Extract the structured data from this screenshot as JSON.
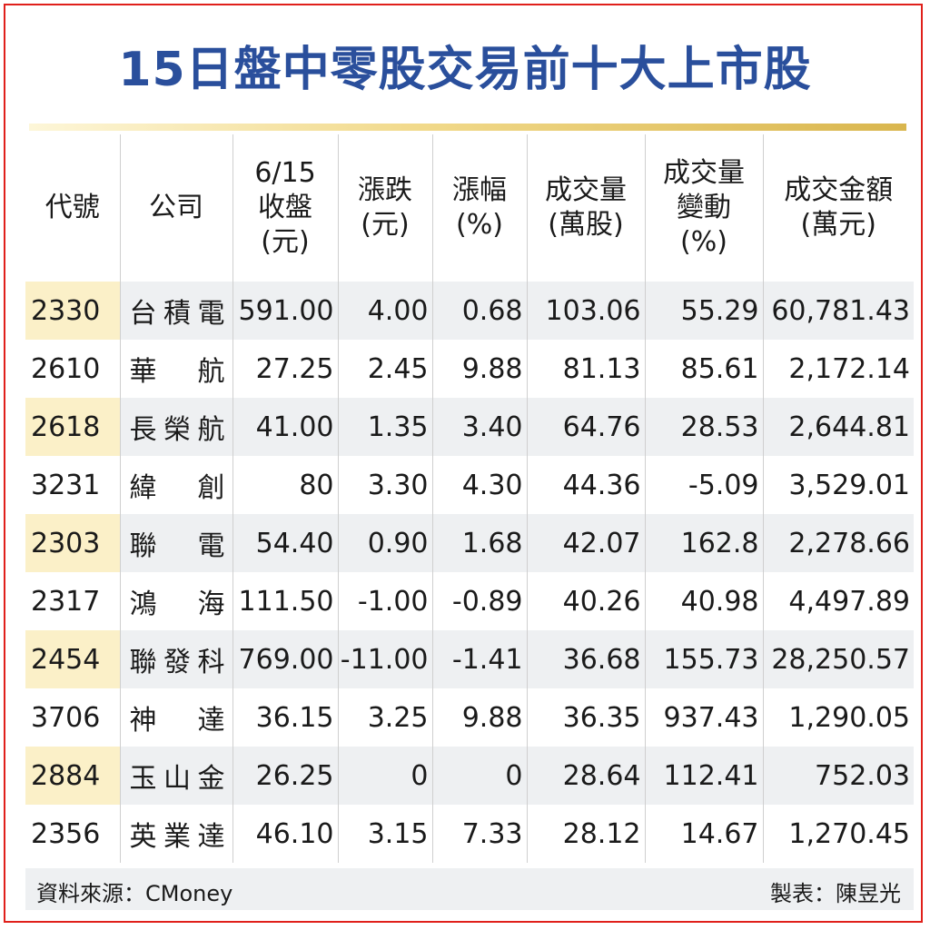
{
  "title": "15日盤中零股交易前十大上市股",
  "headers": [
    "代號",
    "公司",
    "6/15\n收盤\n(元)",
    "漲跌\n(元)",
    "漲幅\n(%)",
    "成交量\n(萬股)",
    "成交量\n變動\n(%)",
    "成交金額\n(萬元)"
  ],
  "rows": [
    [
      "2330",
      "台積電",
      "591.00",
      "4.00",
      "0.68",
      "103.06",
      "55.29",
      "60,781.43"
    ],
    [
      "2610",
      "華航",
      "27.25",
      "2.45",
      "9.88",
      "81.13",
      "85.61",
      "2,172.14"
    ],
    [
      "2618",
      "長榮航",
      "41.00",
      "1.35",
      "3.40",
      "64.76",
      "28.53",
      "2,644.81"
    ],
    [
      "3231",
      "緯創",
      "80",
      "3.30",
      "4.30",
      "44.36",
      "-5.09",
      "3,529.01"
    ],
    [
      "2303",
      "聯電",
      "54.40",
      "0.90",
      "1.68",
      "42.07",
      "162.8",
      "2,278.66"
    ],
    [
      "2317",
      "鴻海",
      "111.50",
      "-1.00",
      "-0.89",
      "40.26",
      "40.98",
      "4,497.89"
    ],
    [
      "2454",
      "聯發科",
      "769.00",
      "-11.00",
      "-1.41",
      "36.68",
      "155.73",
      "28,250.57"
    ],
    [
      "3706",
      "神達",
      "36.15",
      "3.25",
      "9.88",
      "36.35",
      "937.43",
      "1,290.05"
    ],
    [
      "2884",
      "玉山金",
      "26.25",
      "0",
      "0",
      "28.64",
      "112.41",
      "752.03"
    ],
    [
      "2356",
      "英業達",
      "46.10",
      "3.15",
      "7.33",
      "28.12",
      "14.67",
      "1,270.45"
    ]
  ],
  "footer": {
    "source": "資料來源：CMoney",
    "maker": "製表：陳昱光"
  },
  "colors": {
    "title": "#2a4f9c",
    "border": "#e0201b",
    "row_alt": "#eef0f2",
    "code_highlight": "#fbf0c8"
  }
}
